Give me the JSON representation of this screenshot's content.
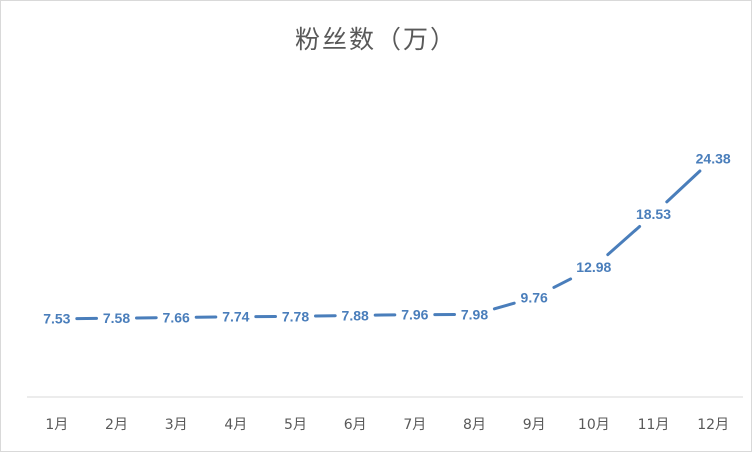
{
  "chart_data": {
    "type": "line",
    "title": "粉丝数（万）",
    "categories": [
      "1月",
      "2月",
      "3月",
      "4月",
      "5月",
      "6月",
      "7月",
      "8月",
      "9月",
      "10月",
      "11月",
      "12月"
    ],
    "series": [
      {
        "values": [
          7.53,
          7.58,
          7.66,
          7.74,
          7.78,
          7.88,
          7.96,
          7.98,
          9.76,
          12.98,
          18.53,
          24.38
        ]
      }
    ],
    "data_labels": [
      "7.53",
      "7.58",
      "7.66",
      "7.74",
      "7.78",
      "7.88",
      "7.96",
      "7.98",
      "9.76",
      "12.98",
      "18.53",
      "24.38"
    ],
    "xlabel": "",
    "ylabel": "",
    "grid": false,
    "legend": "none",
    "colors": {
      "line": "#4a7ebb",
      "axis": "#d9d9d9",
      "text": "#595959"
    }
  }
}
